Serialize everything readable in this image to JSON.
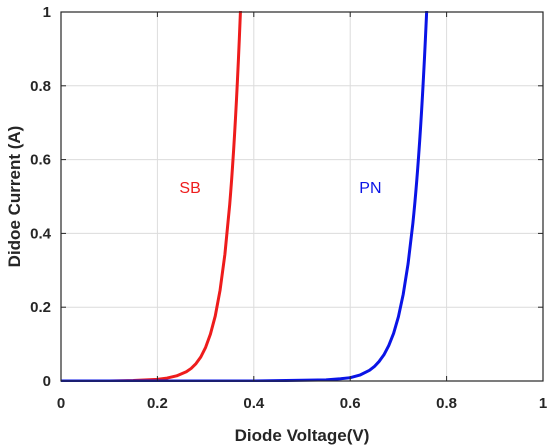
{
  "chart_data": {
    "type": "line",
    "xlabel": "Diode Voltage(V)",
    "ylabel": "Didoe Current (A)",
    "xlim": [
      0,
      1
    ],
    "ylim": [
      0,
      1
    ],
    "xticks": [
      "0",
      "0.2",
      "0.4",
      "0.6",
      "0.8",
      "1"
    ],
    "yticks": [
      "0",
      "0.2",
      "0.4",
      "0.6",
      "0.8",
      "1"
    ],
    "grid": true,
    "series": [
      {
        "name": "SB",
        "color": "#ee1c1c",
        "x": [
          0.0,
          0.1,
          0.15,
          0.2,
          0.22,
          0.24,
          0.26,
          0.27,
          0.28,
          0.29,
          0.3,
          0.31,
          0.32,
          0.33,
          0.34,
          0.35
        ],
        "y": [
          0.0,
          0.0,
          0.0015,
          0.0045,
          0.008,
          0.014,
          0.025,
          0.034,
          0.047,
          0.065,
          0.091,
          0.127,
          0.176,
          0.246,
          0.343,
          0.478
        ]
      },
      {
        "name": "PN",
        "color": "#0a14e6",
        "x": [
          0.0,
          0.2,
          0.4,
          0.55,
          0.58,
          0.6,
          0.62,
          0.64,
          0.65,
          0.66,
          0.67,
          0.68,
          0.69,
          0.7,
          0.71,
          0.72,
          0.73
        ],
        "y": [
          0.0,
          0.0,
          0.0,
          0.003,
          0.006,
          0.009,
          0.016,
          0.029,
          0.039,
          0.053,
          0.071,
          0.096,
          0.129,
          0.174,
          0.235,
          0.317,
          0.427
        ]
      }
    ],
    "annotations": [
      {
        "text": "SB",
        "x": 0.29,
        "y": 0.51,
        "color": "#ee1c1c"
      },
      {
        "text": "PN",
        "x": 0.665,
        "y": 0.51,
        "color": "#0a14e6"
      }
    ]
  }
}
